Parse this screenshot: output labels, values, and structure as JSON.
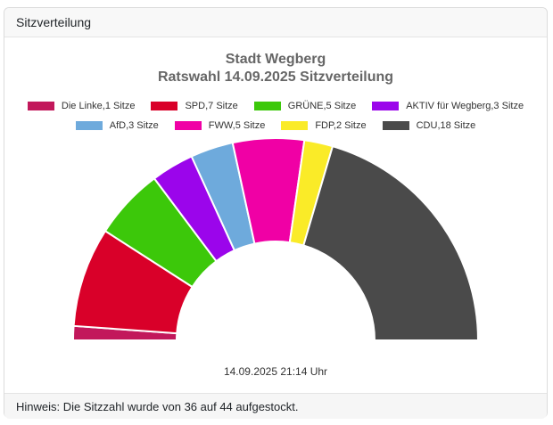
{
  "panel": {
    "title": "Sitzverteilung"
  },
  "chart_data": {
    "type": "pie",
    "variant": "half-donut",
    "title": "Stadt Wegberg",
    "subtitle": "Ratswahl 14.09.2025 Sitzverteilung",
    "total_seats": 44,
    "start_angle_deg": 180,
    "end_angle_deg": 0,
    "inner_radius_ratio": 0.49,
    "legend_position": "top",
    "legend_rows": [
      4,
      4
    ],
    "series": [
      {
        "name": "Die Linke",
        "seats": 1,
        "color": "#C2185B",
        "label": "Die Linke,1 Sitze"
      },
      {
        "name": "SPD",
        "seats": 7,
        "color": "#D90029",
        "label": "SPD,7 Sitze"
      },
      {
        "name": "GRÜNE",
        "seats": 5,
        "color": "#3CC80A",
        "label": "GRÜNE,5 Sitze"
      },
      {
        "name": "AKTIV für Wegberg",
        "seats": 3,
        "color": "#9B05EB",
        "label": "AKTIV für Wegberg,3 Sitze"
      },
      {
        "name": "AfD",
        "seats": 3,
        "color": "#6EAADC",
        "label": "AfD,3 Sitze"
      },
      {
        "name": "FWW",
        "seats": 5,
        "color": "#F000A5",
        "label": "FWW,5 Sitze"
      },
      {
        "name": "FDP",
        "seats": 2,
        "color": "#FAEB28",
        "label": "FDP,2 Sitze"
      },
      {
        "name": "CDU",
        "seats": 18,
        "color": "#4A4A4A",
        "label": "CDU,18 Sitze"
      }
    ],
    "timestamp": "14.09.2025 21:14 Uhr"
  },
  "footer": {
    "note": "Hinweis: Die Sitzzahl wurde von 36 auf 44 aufgestockt."
  }
}
